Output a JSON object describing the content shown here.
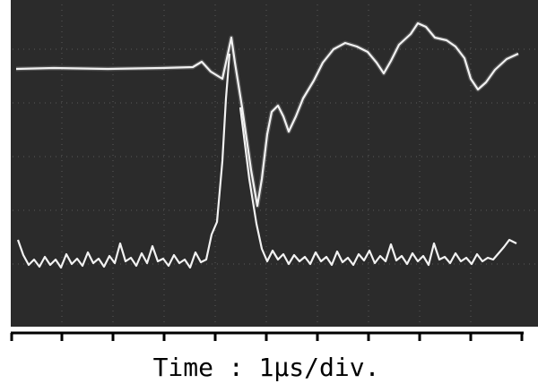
{
  "axis_label": "Time : 1μs/div."
}
